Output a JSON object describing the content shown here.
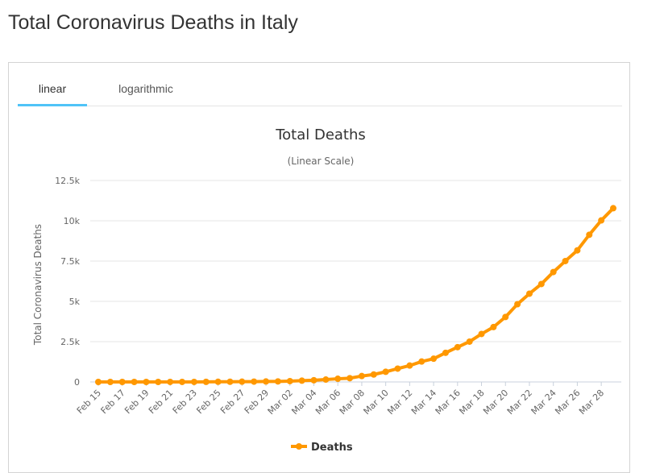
{
  "page": {
    "title": "Total Coronavirus Deaths in Italy"
  },
  "tabs": [
    {
      "label": "linear",
      "active": true
    },
    {
      "label": "logarithmic",
      "active": false
    }
  ],
  "colors": {
    "series": "#ff9800",
    "active_tab_underline": "#4fc3f7",
    "gridline": "#e6e6e6"
  },
  "chart_data": {
    "type": "line",
    "title": "Total Deaths",
    "subtitle": "(Linear Scale)",
    "xlabel": "",
    "ylabel": "Total Coronavirus Deaths",
    "ylim": [
      0,
      12500
    ],
    "yticks": [
      0,
      2500,
      5000,
      7500,
      10000,
      12500
    ],
    "ytick_labels": [
      "0",
      "2.5k",
      "5k",
      "7.5k",
      "10k",
      "12.5k"
    ],
    "xtick_labels": [
      "Feb 15",
      "Feb 17",
      "Feb 19",
      "Feb 21",
      "Feb 23",
      "Feb 25",
      "Feb 27",
      "Feb 29",
      "Mar 02",
      "Mar 04",
      "Mar 06",
      "Mar 08",
      "Mar 10",
      "Mar 12",
      "Mar 14",
      "Mar 16",
      "Mar 18",
      "Mar 20",
      "Mar 22",
      "Mar 24",
      "Mar 26",
      "Mar 28"
    ],
    "categories": [
      "Feb 15",
      "Feb 16",
      "Feb 17",
      "Feb 18",
      "Feb 19",
      "Feb 20",
      "Feb 21",
      "Feb 22",
      "Feb 23",
      "Feb 24",
      "Feb 25",
      "Feb 26",
      "Feb 27",
      "Feb 28",
      "Feb 29",
      "Mar 01",
      "Mar 02",
      "Mar 03",
      "Mar 04",
      "Mar 05",
      "Mar 06",
      "Mar 07",
      "Mar 08",
      "Mar 09",
      "Mar 10",
      "Mar 11",
      "Mar 12",
      "Mar 13",
      "Mar 14",
      "Mar 15",
      "Mar 16",
      "Mar 17",
      "Mar 18",
      "Mar 19",
      "Mar 20",
      "Mar 21",
      "Mar 22",
      "Mar 23",
      "Mar 24",
      "Mar 25",
      "Mar 26",
      "Mar 27",
      "Mar 28",
      "Mar 29"
    ],
    "series": [
      {
        "name": "Deaths",
        "values": [
          0,
          0,
          0,
          0,
          0,
          0,
          1,
          2,
          3,
          7,
          10,
          12,
          17,
          21,
          29,
          34,
          52,
          79,
          107,
          148,
          197,
          233,
          366,
          463,
          631,
          827,
          1016,
          1266,
          1441,
          1809,
          2158,
          2503,
          2978,
          3405,
          4032,
          4825,
          5476,
          6077,
          6820,
          7503,
          8165,
          9134,
          10023,
          10779
        ]
      }
    ],
    "legend": {
      "position": "bottom-center"
    },
    "grid": true
  }
}
